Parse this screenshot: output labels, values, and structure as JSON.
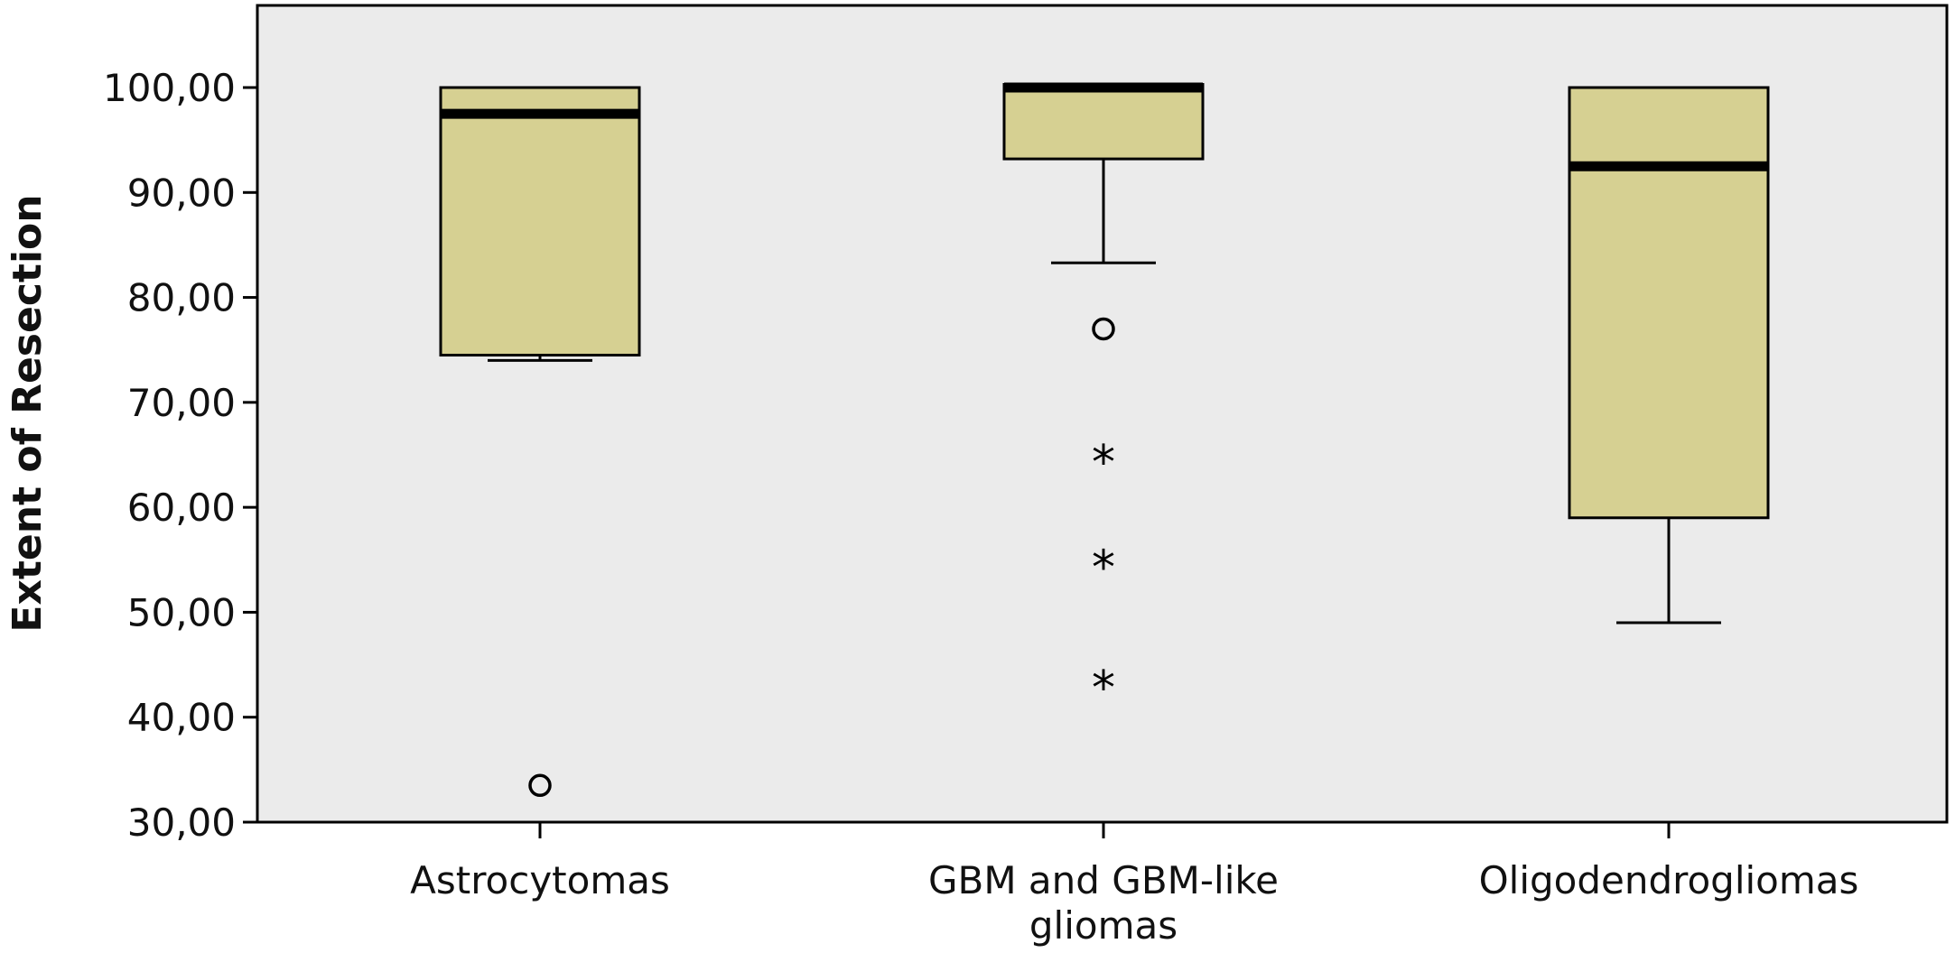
{
  "chart_data": {
    "type": "boxplot",
    "title": "",
    "xlabel": "",
    "ylabel": "Extent of Resection",
    "ylim": [
      30,
      100
    ],
    "yticks": [
      30,
      40,
      50,
      60,
      70,
      80,
      90,
      100
    ],
    "ytick_labels": [
      "30,00",
      "40,00",
      "50,00",
      "60,00",
      "70,00",
      "80,00",
      "90,00",
      "100,00"
    ],
    "grid": false,
    "legend": "none",
    "colors": {
      "box_fill": "#d6d092",
      "plot_background": "#ebebeb",
      "stroke": "#000000"
    },
    "categories": [
      {
        "label_lines": [
          "Astrocytomas"
        ],
        "whisker_low": 74,
        "q1": 74.5,
        "median": 97.5,
        "q3": 100,
        "whisker_high": 100,
        "outliers": [
          33.5
        ],
        "extremes": []
      },
      {
        "label_lines": [
          "GBM and GBM-like",
          "gliomas"
        ],
        "whisker_low": 83.3,
        "q1": 93.2,
        "median": 100,
        "q3": 100.3,
        "whisker_high": 100.3,
        "outliers": [
          77
        ],
        "extremes": [
          65,
          55,
          43.5
        ]
      },
      {
        "label_lines": [
          "Oligodendrogliomas"
        ],
        "whisker_low": 49,
        "q1": 59,
        "median": 92.5,
        "q3": 100,
        "whisker_high": 100,
        "outliers": [],
        "extremes": []
      }
    ]
  }
}
